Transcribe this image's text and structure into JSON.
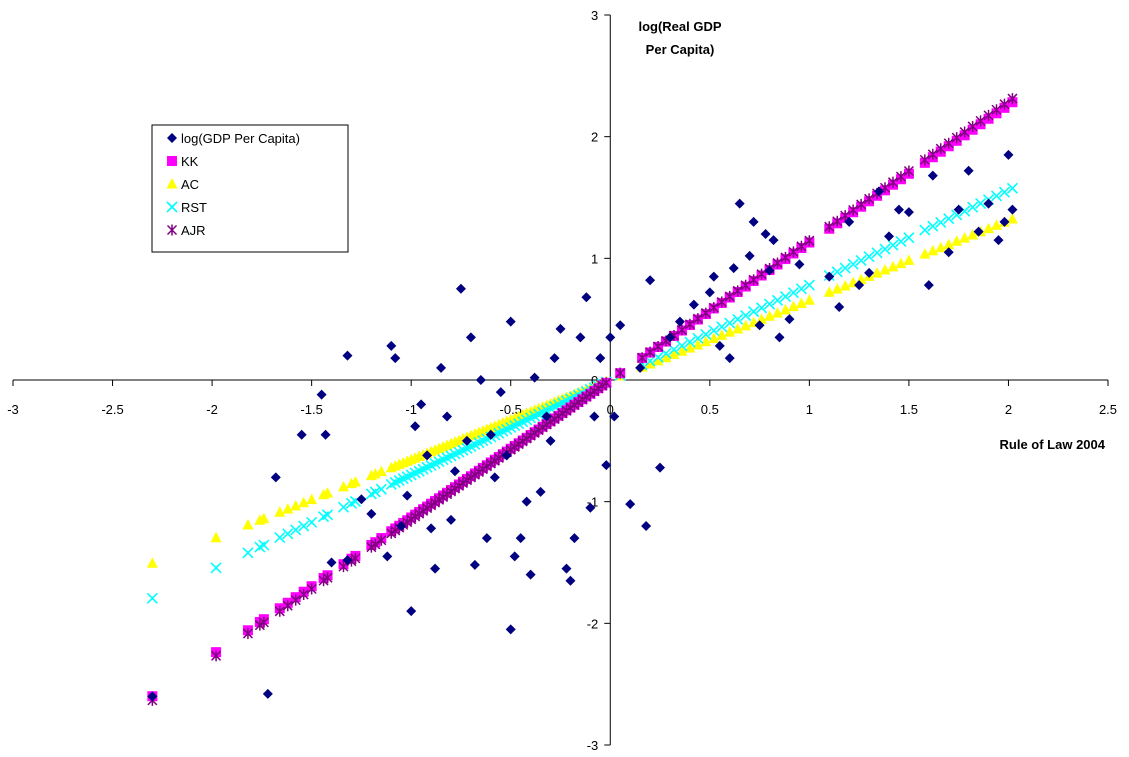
{
  "chart_data": {
    "type": "scatter",
    "title": "",
    "xlabel": "Rule of Law 2004",
    "ylabel_lines": [
      "log(Real GDP",
      "Per Capita)"
    ],
    "xlim": [
      -3,
      2.5
    ],
    "ylim": [
      -3,
      3
    ],
    "x_ticks": [
      -3,
      -2.5,
      -2,
      -1.5,
      -1,
      -0.5,
      0,
      0.5,
      1,
      1.5,
      2,
      2.5
    ],
    "y_ticks": [
      -3,
      -2,
      -1,
      0,
      1,
      2,
      3
    ],
    "grid": false,
    "legend_position": "top-left",
    "series": [
      {
        "name": "log(GDP Per Capita)",
        "marker": "diamond",
        "color": "#000080",
        "points": [
          [
            -2.3,
            -2.6
          ],
          [
            -1.72,
            -2.58
          ],
          [
            -1.68,
            -0.8
          ],
          [
            -1.55,
            -0.45
          ],
          [
            -1.45,
            -0.12
          ],
          [
            -1.43,
            -0.45
          ],
          [
            -1.4,
            -1.5
          ],
          [
            -1.32,
            0.2
          ],
          [
            -1.32,
            -1.48
          ],
          [
            -1.25,
            -0.98
          ],
          [
            -1.2,
            -1.1
          ],
          [
            -1.12,
            -1.45
          ],
          [
            -1.1,
            0.28
          ],
          [
            -1.08,
            0.18
          ],
          [
            -1.05,
            -1.2
          ],
          [
            -1.02,
            -0.95
          ],
          [
            -1.0,
            -1.9
          ],
          [
            -0.98,
            -0.38
          ],
          [
            -0.95,
            -0.2
          ],
          [
            -0.92,
            -0.62
          ],
          [
            -0.9,
            -1.22
          ],
          [
            -0.88,
            -1.55
          ],
          [
            -0.85,
            0.1
          ],
          [
            -0.82,
            -0.3
          ],
          [
            -0.8,
            -1.15
          ],
          [
            -0.78,
            -0.75
          ],
          [
            -0.75,
            0.75
          ],
          [
            -0.72,
            -0.5
          ],
          [
            -0.7,
            0.35
          ],
          [
            -0.68,
            -1.52
          ],
          [
            -0.65,
            0.0
          ],
          [
            -0.62,
            -1.3
          ],
          [
            -0.6,
            -0.45
          ],
          [
            -0.58,
            -0.8
          ],
          [
            -0.55,
            -0.1
          ],
          [
            -0.52,
            -0.62
          ],
          [
            -0.5,
            0.48
          ],
          [
            -0.5,
            -2.05
          ],
          [
            -0.48,
            -1.45
          ],
          [
            -0.45,
            -1.3
          ],
          [
            -0.42,
            -1.0
          ],
          [
            -0.4,
            -1.6
          ],
          [
            -0.38,
            0.02
          ],
          [
            -0.35,
            -0.92
          ],
          [
            -0.32,
            -0.3
          ],
          [
            -0.3,
            -0.5
          ],
          [
            -0.28,
            0.18
          ],
          [
            -0.25,
            0.42
          ],
          [
            -0.22,
            -1.55
          ],
          [
            -0.2,
            -1.65
          ],
          [
            -0.18,
            -1.3
          ],
          [
            -0.15,
            0.35
          ],
          [
            -0.12,
            0.68
          ],
          [
            -0.1,
            -1.05
          ],
          [
            -0.08,
            -0.3
          ],
          [
            -0.05,
            0.18
          ],
          [
            -0.02,
            -0.7
          ],
          [
            0.0,
            0.35
          ],
          [
            0.02,
            -0.3
          ],
          [
            0.05,
            0.45
          ],
          [
            0.1,
            -1.02
          ],
          [
            0.15,
            0.1
          ],
          [
            0.18,
            -1.2
          ],
          [
            0.2,
            0.82
          ],
          [
            0.25,
            -0.72
          ],
          [
            0.3,
            0.35
          ],
          [
            0.35,
            0.48
          ],
          [
            0.42,
            0.62
          ],
          [
            0.5,
            0.72
          ],
          [
            0.52,
            0.85
          ],
          [
            0.55,
            0.28
          ],
          [
            0.6,
            0.18
          ],
          [
            0.62,
            0.92
          ],
          [
            0.65,
            1.45
          ],
          [
            0.7,
            1.02
          ],
          [
            0.72,
            1.3
          ],
          [
            0.75,
            0.45
          ],
          [
            0.78,
            1.2
          ],
          [
            0.8,
            0.9
          ],
          [
            0.82,
            1.15
          ],
          [
            0.85,
            0.35
          ],
          [
            0.9,
            0.5
          ],
          [
            0.95,
            0.95
          ],
          [
            1.1,
            0.85
          ],
          [
            1.15,
            0.6
          ],
          [
            1.2,
            1.3
          ],
          [
            1.25,
            0.78
          ],
          [
            1.3,
            0.88
          ],
          [
            1.35,
            1.55
          ],
          [
            1.4,
            1.18
          ],
          [
            1.45,
            1.4
          ],
          [
            1.5,
            1.38
          ],
          [
            1.6,
            0.78
          ],
          [
            1.62,
            1.68
          ],
          [
            1.7,
            1.05
          ],
          [
            1.75,
            1.4
          ],
          [
            1.8,
            1.72
          ],
          [
            1.85,
            1.22
          ],
          [
            1.9,
            1.45
          ],
          [
            1.95,
            1.15
          ],
          [
            2.0,
            1.85
          ],
          [
            2.02,
            1.4
          ],
          [
            1.98,
            1.3
          ]
        ]
      },
      {
        "name": "KK",
        "marker": "square",
        "color": "#ff00ff",
        "slope": 1.13
      },
      {
        "name": "AC",
        "marker": "triangle",
        "color": "#ffff00",
        "slope": 0.655
      },
      {
        "name": "RST",
        "marker": "x",
        "color": "#00ffff",
        "slope": 0.78
      },
      {
        "name": "AJR",
        "marker": "asterisk",
        "color": "#800080",
        "slope": 1.145
      }
    ],
    "fitted_x": [
      -2.3,
      -1.98,
      -1.82,
      -1.76,
      -1.74,
      -1.66,
      -1.62,
      -1.58,
      -1.54,
      -1.5,
      -1.44,
      -1.42,
      -1.34,
      -1.3,
      -1.28,
      -1.2,
      -1.18,
      -1.15,
      -1.1,
      -1.08,
      -1.06,
      -1.04,
      -1.02,
      -1.0,
      -0.98,
      -0.96,
      -0.94,
      -0.92,
      -0.9,
      -0.88,
      -0.86,
      -0.84,
      -0.82,
      -0.8,
      -0.78,
      -0.76,
      -0.74,
      -0.72,
      -0.7,
      -0.68,
      -0.66,
      -0.64,
      -0.62,
      -0.6,
      -0.58,
      -0.56,
      -0.54,
      -0.52,
      -0.5,
      -0.48,
      -0.46,
      -0.44,
      -0.42,
      -0.4,
      -0.38,
      -0.36,
      -0.34,
      -0.32,
      -0.3,
      -0.28,
      -0.26,
      -0.24,
      -0.22,
      -0.2,
      -0.18,
      -0.16,
      -0.14,
      -0.12,
      -0.1,
      -0.08,
      -0.06,
      -0.04,
      -0.02,
      0.05,
      0.16,
      0.2,
      0.24,
      0.28,
      0.32,
      0.36,
      0.4,
      0.44,
      0.48,
      0.52,
      0.56,
      0.6,
      0.64,
      0.68,
      0.72,
      0.76,
      0.8,
      0.84,
      0.88,
      0.92,
      0.96,
      1.0,
      1.1,
      1.14,
      1.18,
      1.22,
      1.26,
      1.3,
      1.34,
      1.38,
      1.42,
      1.46,
      1.5,
      1.58,
      1.62,
      1.66,
      1.7,
      1.74,
      1.78,
      1.82,
      1.86,
      1.9,
      1.94,
      1.98,
      2.02
    ],
    "legend": [
      "log(GDP Per Capita)",
      "KK",
      "AC",
      "RST",
      "AJR"
    ]
  }
}
